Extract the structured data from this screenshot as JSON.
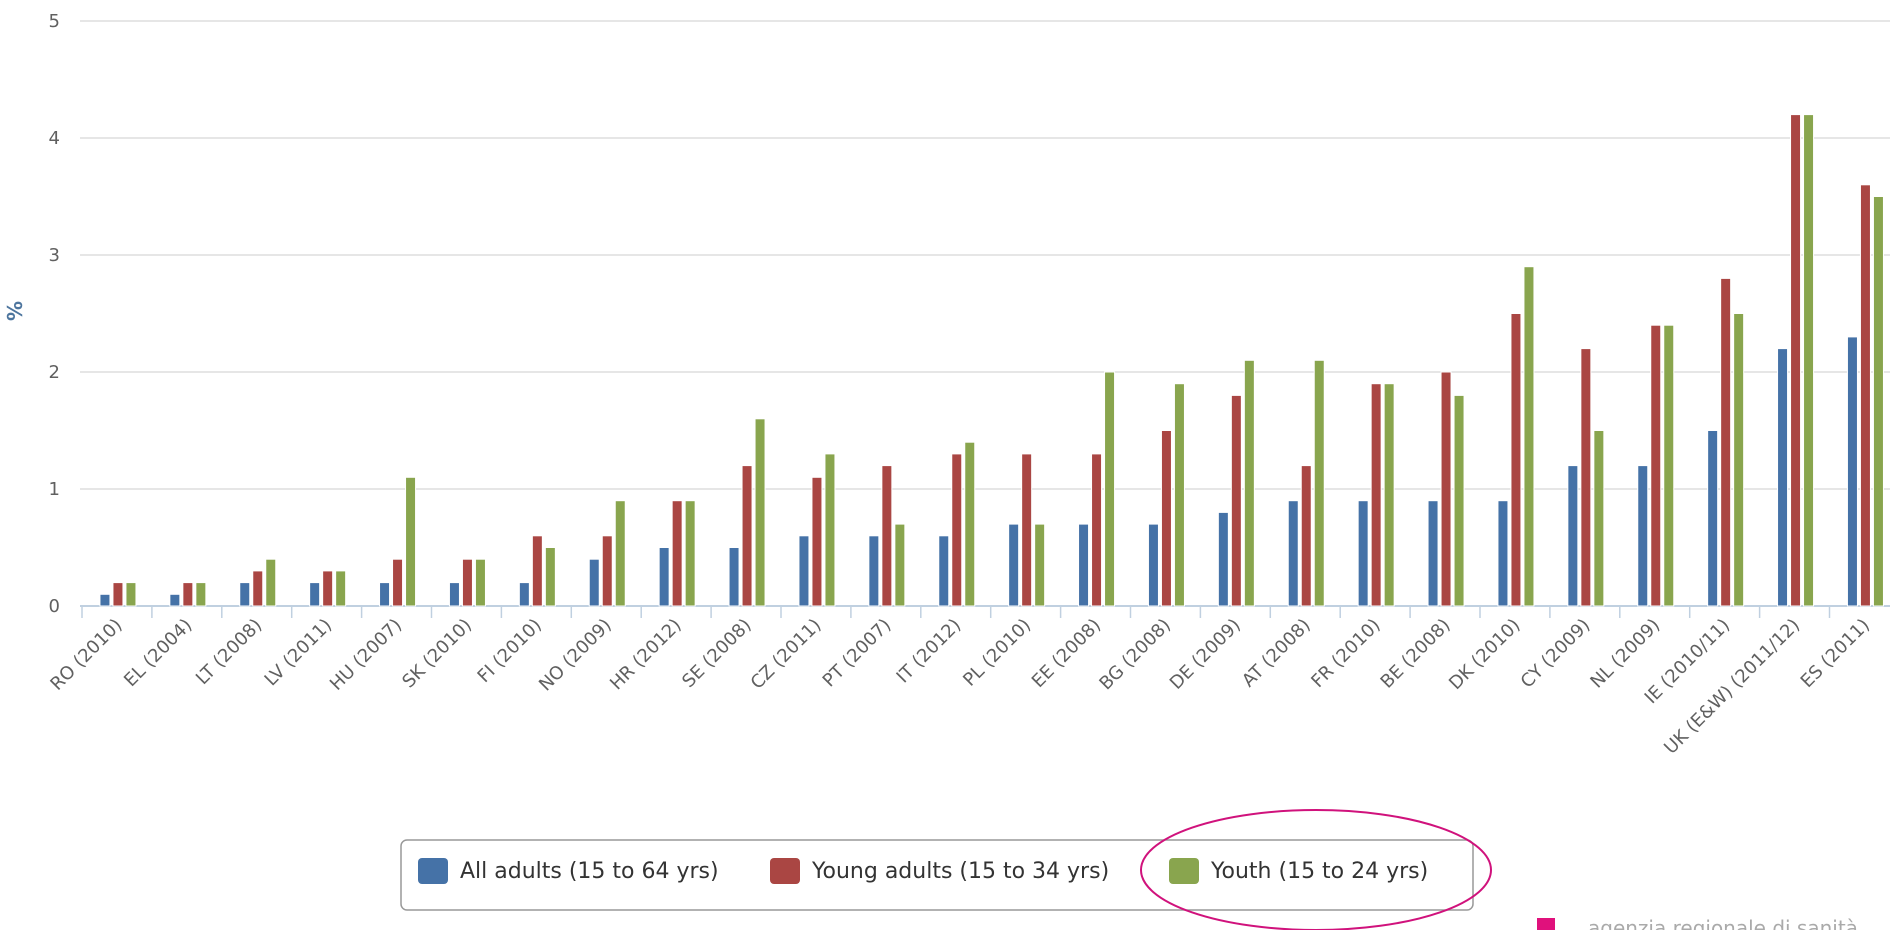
{
  "chart_data": {
    "type": "bar",
    "y_label": "%",
    "categories": [
      "RO (2010)",
      "EL (2004)",
      "LT (2008)",
      "LV (2011)",
      "HU (2007)",
      "SK (2010)",
      "FI (2010)",
      "NO (2009)",
      "HR (2012)",
      "SE (2008)",
      "CZ (2011)",
      "PT (2007)",
      "IT (2012)",
      "PL (2010)",
      "EE (2008)",
      "BG (2008)",
      "DE (2009)",
      "AT (2008)",
      "FR (2010)",
      "BE (2008)",
      "DK (2010)",
      "CY (2009)",
      "NL (2009)",
      "IE (2010/11)",
      "UK (E&W) (2011/12)",
      "ES (2011)"
    ],
    "series": [
      {
        "name": "All adults (15 to 64 yrs)",
        "color": "#4572a7",
        "values": [
          0.1,
          0.1,
          0.2,
          0.2,
          0.2,
          0.2,
          0.2,
          0.4,
          0.5,
          0.5,
          0.6,
          0.6,
          0.6,
          0.7,
          0.7,
          0.7,
          0.8,
          0.9,
          0.9,
          0.9,
          0.9,
          1.2,
          1.2,
          1.5,
          2.2,
          2.3
        ]
      },
      {
        "name": "Young adults (15 to 34 yrs)",
        "color": "#aa4643",
        "values": [
          0.2,
          0.2,
          0.3,
          0.3,
          0.4,
          0.4,
          0.6,
          0.6,
          0.9,
          1.2,
          1.1,
          1.2,
          1.3,
          1.3,
          1.3,
          1.5,
          1.8,
          1.2,
          1.9,
          2.0,
          2.5,
          2.2,
          2.4,
          2.8,
          4.2,
          3.6
        ]
      },
      {
        "name": "Youth (15 to 24 yrs)",
        "color": "#89a54e",
        "values": [
          0.2,
          0.2,
          0.4,
          0.3,
          1.1,
          0.4,
          0.5,
          0.9,
          0.9,
          1.6,
          1.3,
          0.7,
          1.4,
          0.7,
          2.0,
          1.9,
          2.1,
          2.1,
          1.9,
          1.8,
          2.9,
          1.5,
          2.4,
          2.5,
          4.2,
          3.5
        ]
      }
    ],
    "ylim": [
      0,
      5
    ],
    "yticks": [
      0,
      1,
      2,
      3,
      4,
      5
    ],
    "grid": true,
    "legend": "bottom",
    "watermark": "agenzia regionale di sanità"
  }
}
